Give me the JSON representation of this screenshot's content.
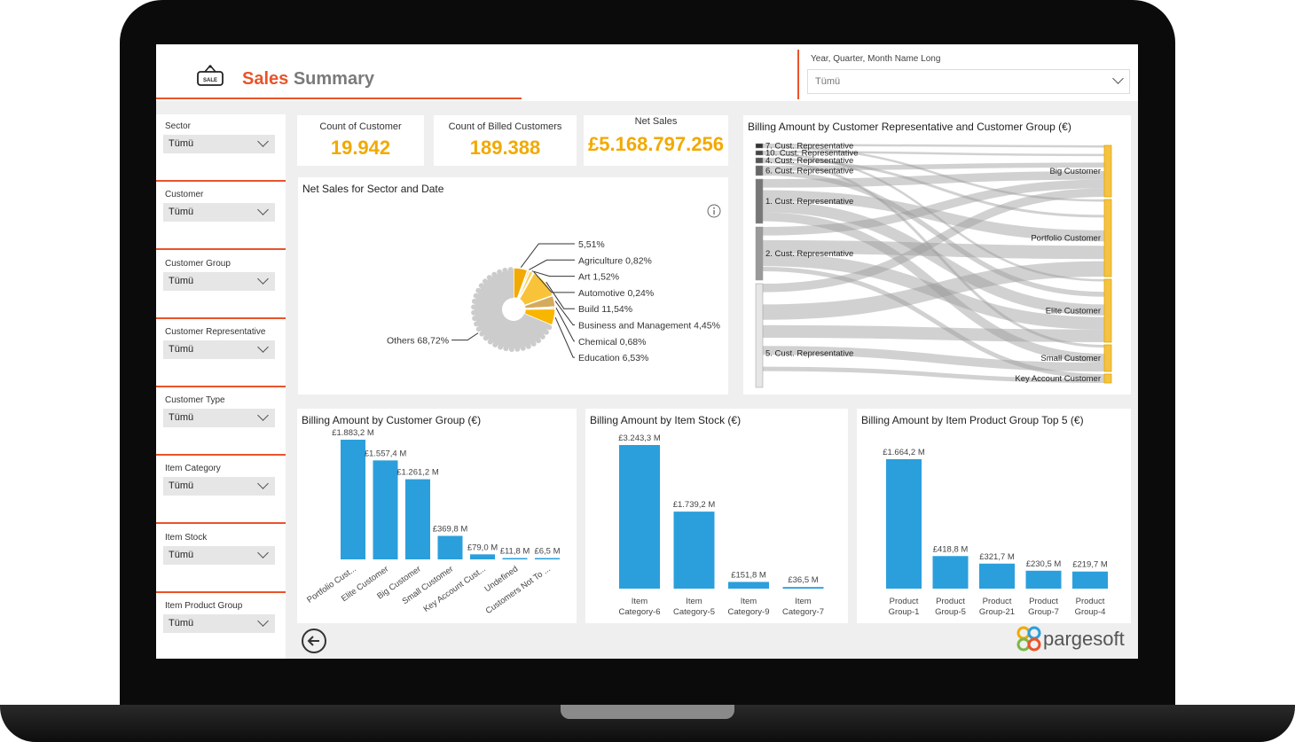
{
  "header": {
    "title_part1": "Sales",
    "title_part2": "Summary",
    "sale_icon_label": "SALE"
  },
  "date_filter": {
    "label": "Year, Quarter, Month Name Long",
    "value": "Tümü"
  },
  "slicers": [
    {
      "label": "Sector",
      "value": "Tümü"
    },
    {
      "label": "Customer",
      "value": "Tümü"
    },
    {
      "label": "Customer Group",
      "value": "Tümü"
    },
    {
      "label": "Customer Representative",
      "value": "Tümü"
    },
    {
      "label": "Customer Type",
      "value": "Tümü"
    },
    {
      "label": "Item Category",
      "value": "Tümü"
    },
    {
      "label": "Item Stock",
      "value": "Tümü"
    },
    {
      "label": "Item Product Group",
      "value": "Tümü"
    }
  ],
  "kpis": [
    {
      "label": "Count of Customer",
      "value": "19.942"
    },
    {
      "label": "Count of Billed Customers",
      "value": "189.388"
    },
    {
      "label": "Net Sales",
      "value": "£5.168.797.256"
    }
  ],
  "colors": {
    "accent": "#e8542a",
    "kpi": "#f2a900",
    "bar": "#2b9fdc"
  },
  "chart_data": [
    {
      "type": "pie",
      "title": "Net Sales for Sector and Date",
      "slices": [
        {
          "label": "Others",
          "pct": "68,72%",
          "value": 68.72
        },
        {
          "label": "",
          "pct": "5,51%",
          "value": 5.51
        },
        {
          "label": "Agriculture",
          "pct": "0,82%",
          "value": 0.82
        },
        {
          "label": "Art",
          "pct": "1,52%",
          "value": 1.52
        },
        {
          "label": "Automotive",
          "pct": "0,24%",
          "value": 0.24
        },
        {
          "label": "Build",
          "pct": "11,54%",
          "value": 11.54
        },
        {
          "label": "Business and Management",
          "pct": "4,45%",
          "value": 4.45
        },
        {
          "label": "Chemical",
          "pct": "0,68%",
          "value": 0.68
        },
        {
          "label": "Education",
          "pct": "6,53%",
          "value": 6.53
        }
      ]
    },
    {
      "type": "sankey",
      "title": "Billing Amount by Customer Representative and Customer Group (€)",
      "sources": [
        "7. Cust. Representative",
        "10. Cust. Representative",
        "4. Cust. Representative",
        "6. Cust. Representative",
        "1. Cust. Representative",
        "2. Cust. Representative",
        "5. Cust. Representative"
      ],
      "targets": [
        "Big Customer",
        "Portfolio Customer",
        "Elite Customer",
        "Small Customer",
        "Key Account Customer"
      ]
    },
    {
      "type": "bar",
      "title": "Billing Amount by Customer Group (€)",
      "categories": [
        "Portfolio Cust...",
        "Elite Customer",
        "Big Customer",
        "Small Customer",
        "Key Account Cust...",
        "Undefined",
        "Customers Not To ..."
      ],
      "values": [
        1883.2,
        1557.4,
        1261.2,
        369.8,
        79.0,
        11.8,
        6.5
      ],
      "labels": [
        "£1.883,2 M",
        "£1.557,4 M",
        "£1.261,2 M",
        "£369,8 M",
        "£79,0 M",
        "£11,8 M",
        "£6,5 M"
      ]
    },
    {
      "type": "bar",
      "title": "Billing Amount by Item Stock (€)",
      "categories": [
        "Item Category-6",
        "Item Category-5",
        "Item Category-9",
        "Item Category-7"
      ],
      "values": [
        3243.3,
        1739.2,
        151.8,
        36.5
      ],
      "labels": [
        "£3.243,3 M",
        "£1.739,2 M",
        "£151,8 M",
        "£36,5 M"
      ]
    },
    {
      "type": "bar",
      "title": "Billing Amount by Item Product Group Top 5 (€)",
      "categories": [
        "Product Group-1",
        "Product Group-5",
        "Product Group-21",
        "Product Group-7",
        "Product Group-4"
      ],
      "values": [
        1664.2,
        418.8,
        321.7,
        230.5,
        219.7
      ],
      "labels": [
        "£1.664,2 M",
        "£418,8 M",
        "£321,7 M",
        "£230,5 M",
        "£219,7 M"
      ]
    }
  ],
  "footer": {
    "brand": "pargesoft"
  }
}
